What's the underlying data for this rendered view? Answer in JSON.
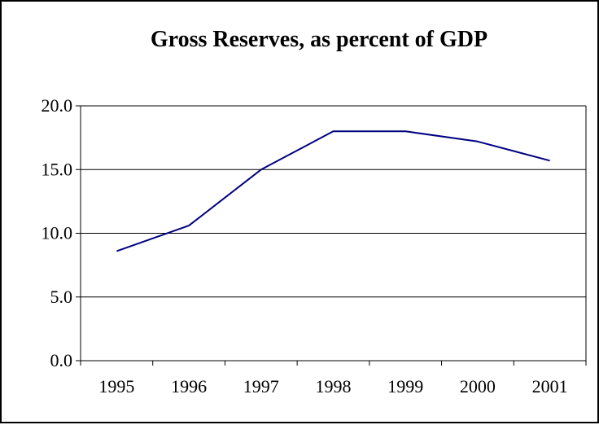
{
  "chart_data": {
    "type": "line",
    "title": "Gross Reserves, as percent of GDP",
    "xlabel": "",
    "ylabel": "",
    "categories": [
      "1995",
      "1996",
      "1997",
      "1998",
      "1999",
      "2000",
      "2001"
    ],
    "series": [
      {
        "values": [
          8.6,
          10.6,
          15.0,
          18.0,
          18.0,
          17.2,
          15.7
        ],
        "color": "#000080"
      }
    ],
    "ylim": [
      0,
      20
    ],
    "yticks": [
      0,
      5,
      10,
      15,
      20
    ],
    "ytick_labels": [
      "0.0",
      "5.0",
      "10.0",
      "15.0",
      "20.0"
    ],
    "grid": true,
    "legend": "none"
  }
}
